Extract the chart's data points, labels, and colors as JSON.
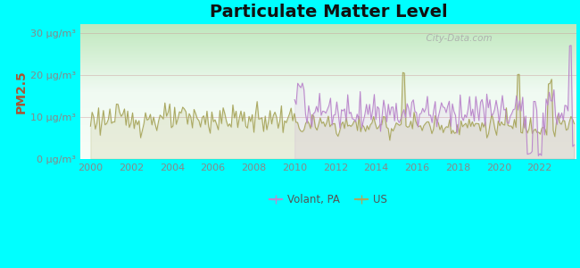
{
  "title": "Particulate Matter Level",
  "ylabel": "PM2.5",
  "ytick_labels": [
    "0 μg/m³",
    "10 μg/m³",
    "20 μg/m³",
    "30 μg/m³"
  ],
  "ytick_values": [
    0,
    10,
    20,
    30
  ],
  "xtick_labels": [
    "2000",
    "2002",
    "2004",
    "2006",
    "2008",
    "2010",
    "2012",
    "2014",
    "2016",
    "2018",
    "2020",
    "2022"
  ],
  "xtick_values": [
    2000,
    2002,
    2004,
    2006,
    2008,
    2010,
    2012,
    2014,
    2016,
    2018,
    2020,
    2022
  ],
  "xlim": [
    1999.5,
    2023.8
  ],
  "ylim": [
    0,
    32
  ],
  "background_outer": "#00FFFF",
  "volant_color": "#bb88cc",
  "us_color": "#aaa860",
  "watermark_text": "  City-Data.com",
  "watermark_color": "#aaaaaa",
  "legend_volant": "Volant, PA",
  "legend_us": "US",
  "title_fontsize": 14,
  "ylabel_color": "#aa5533",
  "axis_label_fontsize": 10,
  "tick_fontsize": 8,
  "tick_color": "#888888",
  "grid_color": "#cc9999",
  "bg_top_left": "#d8f0d0",
  "bg_top_right": "#eef8f0",
  "bg_bottom_left": "#c8e8c0",
  "bg_bottom_right": "#d8f0d0"
}
